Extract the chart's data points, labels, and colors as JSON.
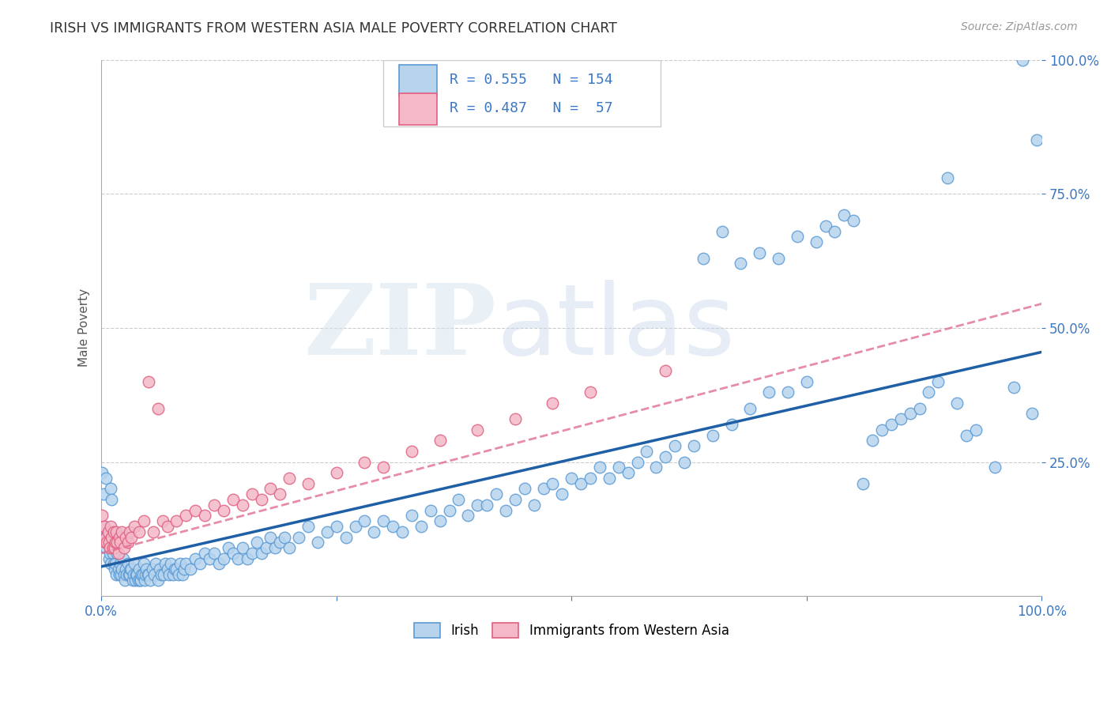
{
  "title": "IRISH VS IMMIGRANTS FROM WESTERN ASIA MALE POVERTY CORRELATION CHART",
  "source_text": "Source: ZipAtlas.com",
  "ylabel": "Male Poverty",
  "xlim": [
    0,
    1
  ],
  "ylim": [
    0,
    1
  ],
  "ytick_labels": [
    "25.0%",
    "50.0%",
    "75.0%",
    "100.0%"
  ],
  "ytick_positions": [
    0.25,
    0.5,
    0.75,
    1.0
  ],
  "watermark_zip": "ZIP",
  "watermark_atlas": "atlas",
  "irish_color": "#b8d4ed",
  "irish_edge_color": "#5b9bd5",
  "western_asia_color": "#f4b8c8",
  "western_asia_edge_color": "#e06080",
  "irish_line_color": "#1f5fa6",
  "western_asia_line_color": "#e07090",
  "background_color": "#ffffff",
  "grid_color": "#cccccc",
  "title_color": "#333333",
  "legend_text_color": "#3b78c3",
  "irish_line": [
    0.0,
    0.055,
    1.0,
    0.455
  ],
  "wa_line": [
    0.0,
    0.08,
    1.0,
    0.545
  ],
  "irish_scatter": [
    [
      0.001,
      0.23
    ],
    [
      0.002,
      0.19
    ],
    [
      0.003,
      0.13
    ],
    [
      0.004,
      0.11
    ],
    [
      0.005,
      0.09
    ],
    [
      0.005,
      0.22
    ],
    [
      0.006,
      0.1
    ],
    [
      0.007,
      0.12
    ],
    [
      0.008,
      0.07
    ],
    [
      0.009,
      0.08
    ],
    [
      0.01,
      0.06
    ],
    [
      0.01,
      0.2
    ],
    [
      0.011,
      0.18
    ],
    [
      0.012,
      0.08
    ],
    [
      0.013,
      0.06
    ],
    [
      0.014,
      0.05
    ],
    [
      0.015,
      0.06
    ],
    [
      0.016,
      0.04
    ],
    [
      0.017,
      0.08
    ],
    [
      0.018,
      0.05
    ],
    [
      0.019,
      0.04
    ],
    [
      0.02,
      0.06
    ],
    [
      0.021,
      0.04
    ],
    [
      0.022,
      0.05
    ],
    [
      0.023,
      0.07
    ],
    [
      0.024,
      0.04
    ],
    [
      0.025,
      0.03
    ],
    [
      0.026,
      0.05
    ],
    [
      0.027,
      0.04
    ],
    [
      0.028,
      0.06
    ],
    [
      0.029,
      0.04
    ],
    [
      0.03,
      0.04
    ],
    [
      0.031,
      0.05
    ],
    [
      0.032,
      0.05
    ],
    [
      0.033,
      0.03
    ],
    [
      0.034,
      0.04
    ],
    [
      0.035,
      0.06
    ],
    [
      0.036,
      0.03
    ],
    [
      0.037,
      0.04
    ],
    [
      0.038,
      0.04
    ],
    [
      0.039,
      0.03
    ],
    [
      0.04,
      0.05
    ],
    [
      0.041,
      0.03
    ],
    [
      0.042,
      0.03
    ],
    [
      0.043,
      0.04
    ],
    [
      0.044,
      0.04
    ],
    [
      0.045,
      0.06
    ],
    [
      0.046,
      0.03
    ],
    [
      0.047,
      0.04
    ],
    [
      0.048,
      0.05
    ],
    [
      0.049,
      0.04
    ],
    [
      0.05,
      0.04
    ],
    [
      0.052,
      0.03
    ],
    [
      0.054,
      0.05
    ],
    [
      0.056,
      0.04
    ],
    [
      0.058,
      0.06
    ],
    [
      0.06,
      0.03
    ],
    [
      0.062,
      0.05
    ],
    [
      0.064,
      0.04
    ],
    [
      0.066,
      0.04
    ],
    [
      0.068,
      0.06
    ],
    [
      0.07,
      0.05
    ],
    [
      0.072,
      0.04
    ],
    [
      0.074,
      0.06
    ],
    [
      0.076,
      0.04
    ],
    [
      0.078,
      0.05
    ],
    [
      0.08,
      0.05
    ],
    [
      0.082,
      0.04
    ],
    [
      0.084,
      0.06
    ],
    [
      0.086,
      0.04
    ],
    [
      0.088,
      0.05
    ],
    [
      0.09,
      0.06
    ],
    [
      0.095,
      0.05
    ],
    [
      0.1,
      0.07
    ],
    [
      0.105,
      0.06
    ],
    [
      0.11,
      0.08
    ],
    [
      0.115,
      0.07
    ],
    [
      0.12,
      0.08
    ],
    [
      0.125,
      0.06
    ],
    [
      0.13,
      0.07
    ],
    [
      0.135,
      0.09
    ],
    [
      0.14,
      0.08
    ],
    [
      0.145,
      0.07
    ],
    [
      0.15,
      0.09
    ],
    [
      0.155,
      0.07
    ],
    [
      0.16,
      0.08
    ],
    [
      0.165,
      0.1
    ],
    [
      0.17,
      0.08
    ],
    [
      0.175,
      0.09
    ],
    [
      0.18,
      0.11
    ],
    [
      0.185,
      0.09
    ],
    [
      0.19,
      0.1
    ],
    [
      0.195,
      0.11
    ],
    [
      0.2,
      0.09
    ],
    [
      0.21,
      0.11
    ],
    [
      0.22,
      0.13
    ],
    [
      0.23,
      0.1
    ],
    [
      0.24,
      0.12
    ],
    [
      0.25,
      0.13
    ],
    [
      0.26,
      0.11
    ],
    [
      0.27,
      0.13
    ],
    [
      0.28,
      0.14
    ],
    [
      0.29,
      0.12
    ],
    [
      0.3,
      0.14
    ],
    [
      0.31,
      0.13
    ],
    [
      0.32,
      0.12
    ],
    [
      0.33,
      0.15
    ],
    [
      0.34,
      0.13
    ],
    [
      0.35,
      0.16
    ],
    [
      0.36,
      0.14
    ],
    [
      0.37,
      0.16
    ],
    [
      0.38,
      0.18
    ],
    [
      0.39,
      0.15
    ],
    [
      0.4,
      0.17
    ],
    [
      0.41,
      0.17
    ],
    [
      0.42,
      0.19
    ],
    [
      0.43,
      0.16
    ],
    [
      0.44,
      0.18
    ],
    [
      0.45,
      0.2
    ],
    [
      0.46,
      0.17
    ],
    [
      0.47,
      0.2
    ],
    [
      0.48,
      0.21
    ],
    [
      0.49,
      0.19
    ],
    [
      0.5,
      0.22
    ],
    [
      0.51,
      0.21
    ],
    [
      0.52,
      0.22
    ],
    [
      0.53,
      0.24
    ],
    [
      0.54,
      0.22
    ],
    [
      0.55,
      0.24
    ],
    [
      0.56,
      0.23
    ],
    [
      0.57,
      0.25
    ],
    [
      0.58,
      0.27
    ],
    [
      0.59,
      0.24
    ],
    [
      0.6,
      0.26
    ],
    [
      0.61,
      0.28
    ],
    [
      0.62,
      0.25
    ],
    [
      0.63,
      0.28
    ],
    [
      0.64,
      0.63
    ],
    [
      0.65,
      0.3
    ],
    [
      0.66,
      0.68
    ],
    [
      0.67,
      0.32
    ],
    [
      0.68,
      0.62
    ],
    [
      0.69,
      0.35
    ],
    [
      0.7,
      0.64
    ],
    [
      0.71,
      0.38
    ],
    [
      0.72,
      0.63
    ],
    [
      0.73,
      0.38
    ],
    [
      0.74,
      0.67
    ],
    [
      0.75,
      0.4
    ],
    [
      0.76,
      0.66
    ],
    [
      0.77,
      0.69
    ],
    [
      0.78,
      0.68
    ],
    [
      0.79,
      0.71
    ],
    [
      0.8,
      0.7
    ],
    [
      0.81,
      0.21
    ],
    [
      0.82,
      0.29
    ],
    [
      0.83,
      0.31
    ],
    [
      0.84,
      0.32
    ],
    [
      0.85,
      0.33
    ],
    [
      0.86,
      0.34
    ],
    [
      0.87,
      0.35
    ],
    [
      0.88,
      0.38
    ],
    [
      0.89,
      0.4
    ],
    [
      0.9,
      0.78
    ],
    [
      0.91,
      0.36
    ],
    [
      0.92,
      0.3
    ],
    [
      0.93,
      0.31
    ],
    [
      0.95,
      0.24
    ],
    [
      0.97,
      0.39
    ],
    [
      0.98,
      1.0
    ],
    [
      0.99,
      0.34
    ],
    [
      0.995,
      0.85
    ]
  ],
  "wa_scatter": [
    [
      0.001,
      0.15
    ],
    [
      0.003,
      0.13
    ],
    [
      0.004,
      0.1
    ],
    [
      0.005,
      0.11
    ],
    [
      0.006,
      0.1
    ],
    [
      0.007,
      0.12
    ],
    [
      0.008,
      0.1
    ],
    [
      0.009,
      0.09
    ],
    [
      0.01,
      0.13
    ],
    [
      0.011,
      0.11
    ],
    [
      0.012,
      0.09
    ],
    [
      0.013,
      0.12
    ],
    [
      0.014,
      0.09
    ],
    [
      0.015,
      0.1
    ],
    [
      0.016,
      0.12
    ],
    [
      0.017,
      0.1
    ],
    [
      0.018,
      0.08
    ],
    [
      0.019,
      0.11
    ],
    [
      0.02,
      0.1
    ],
    [
      0.022,
      0.12
    ],
    [
      0.024,
      0.09
    ],
    [
      0.026,
      0.11
    ],
    [
      0.028,
      0.1
    ],
    [
      0.03,
      0.12
    ],
    [
      0.032,
      0.11
    ],
    [
      0.035,
      0.13
    ],
    [
      0.04,
      0.12
    ],
    [
      0.045,
      0.14
    ],
    [
      0.05,
      0.4
    ],
    [
      0.055,
      0.12
    ],
    [
      0.06,
      0.35
    ],
    [
      0.065,
      0.14
    ],
    [
      0.07,
      0.13
    ],
    [
      0.08,
      0.14
    ],
    [
      0.09,
      0.15
    ],
    [
      0.1,
      0.16
    ],
    [
      0.11,
      0.15
    ],
    [
      0.12,
      0.17
    ],
    [
      0.13,
      0.16
    ],
    [
      0.14,
      0.18
    ],
    [
      0.15,
      0.17
    ],
    [
      0.16,
      0.19
    ],
    [
      0.17,
      0.18
    ],
    [
      0.18,
      0.2
    ],
    [
      0.19,
      0.19
    ],
    [
      0.2,
      0.22
    ],
    [
      0.22,
      0.21
    ],
    [
      0.25,
      0.23
    ],
    [
      0.28,
      0.25
    ],
    [
      0.3,
      0.24
    ],
    [
      0.33,
      0.27
    ],
    [
      0.36,
      0.29
    ],
    [
      0.4,
      0.31
    ],
    [
      0.44,
      0.33
    ],
    [
      0.48,
      0.36
    ],
    [
      0.52,
      0.38
    ],
    [
      0.6,
      0.42
    ]
  ]
}
